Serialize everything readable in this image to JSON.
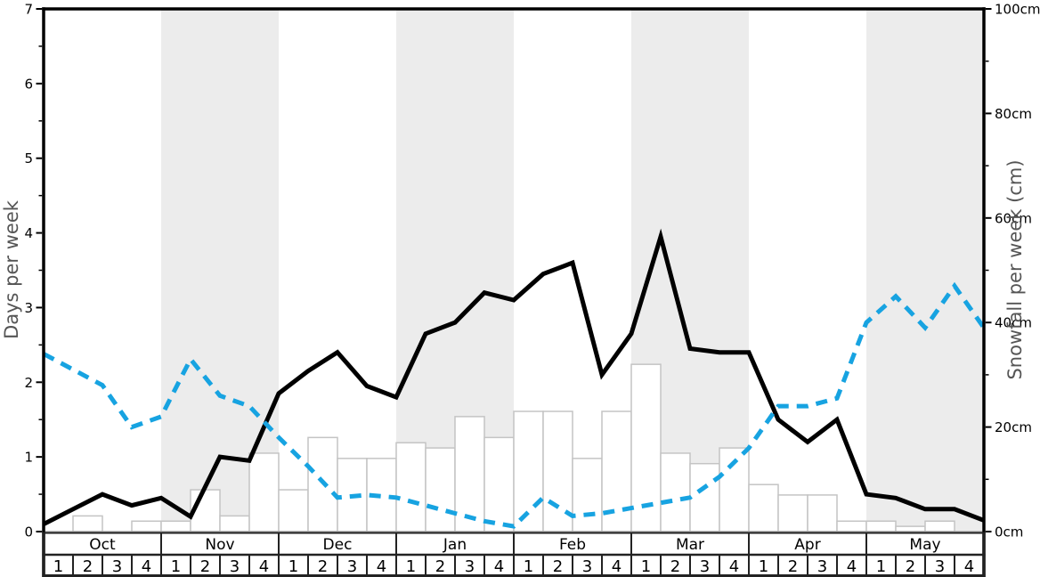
{
  "chart_data": {
    "type": "line+bar",
    "title": "",
    "months": [
      "Oct",
      "Nov",
      "Dec",
      "Jan",
      "Feb",
      "Mar",
      "Apr",
      "May"
    ],
    "weeks_per_month": 4,
    "week_labels": [
      "1",
      "2",
      "3",
      "4"
    ],
    "shaded_months": [
      "Nov",
      "Jan",
      "Mar",
      "May"
    ],
    "band_color": "#ececec",
    "left_axis": {
      "label": "Days per week",
      "min": 0,
      "max": 7,
      "major_tick_step": 1,
      "minor_tick_step": 0.5,
      "tick_labels": [
        "0",
        "1",
        "2",
        "3",
        "4",
        "5",
        "6",
        "7"
      ]
    },
    "right_axis": {
      "label": "Snowfall per week (cm)",
      "min": 0,
      "max": 100,
      "major_tick_step": 20,
      "minor_tick_step": 10,
      "tick_labels": [
        "0cm",
        "20cm",
        "40cm",
        "60cm",
        "80cm",
        "100cm"
      ]
    },
    "series": [
      {
        "name": "weekly-snowfall-bars",
        "type": "bar",
        "axis": "right",
        "unit": "cm",
        "style": {
          "fill": "#ffffff",
          "stroke": "#c4c4c4",
          "stroke_width": 1.5
        },
        "values": [
          0,
          3,
          0,
          2,
          2,
          8,
          3,
          15,
          8,
          18,
          14,
          14,
          17,
          16,
          22,
          18,
          23,
          23,
          14,
          23,
          32,
          15,
          13,
          16,
          9,
          7,
          7,
          2,
          2,
          1,
          2,
          0
        ]
      },
      {
        "name": "days-per-week-line",
        "type": "line",
        "axis": "left",
        "unit": "days",
        "points_at": "week-boundaries",
        "style": {
          "color": "#000000",
          "width": 5,
          "dash": "none"
        },
        "values": [
          0.1,
          0.3,
          0.5,
          0.35,
          0.45,
          0.2,
          1.0,
          0.95,
          1.85,
          2.15,
          2.4,
          1.95,
          1.8,
          2.65,
          2.8,
          3.2,
          3.1,
          3.45,
          3.6,
          2.1,
          2.65,
          3.95,
          2.45,
          2.4,
          2.4,
          1.5,
          1.2,
          1.5,
          0.5,
          0.45,
          0.3,
          0.3,
          0.15
        ]
      },
      {
        "name": "snowfall-dashed-line",
        "type": "line",
        "axis": "right",
        "unit": "cm",
        "points_at": "week-boundaries",
        "style": {
          "color": "#17a3e1",
          "width": 5,
          "dash": "13 9"
        },
        "values": [
          34,
          31,
          28,
          20,
          22,
          33,
          26,
          24,
          18,
          12.5,
          6.5,
          7,
          6.5,
          5,
          3.5,
          2,
          1,
          6.5,
          3,
          3.5,
          4.5,
          5.5,
          6.5,
          10.5,
          16,
          24,
          24,
          25.5,
          40,
          45,
          39,
          47,
          39
        ]
      }
    ],
    "grid": "off",
    "legend": "none"
  },
  "colors": {
    "axis_title": "#555555",
    "tick_label": "#000000",
    "spine": "#000000",
    "baseline": "#aaaaaa",
    "band": "#ececec",
    "bar_fill": "#ffffff",
    "bar_stroke": "#c4c4c4",
    "solid_line": "#000000",
    "dashed_line": "#17a3e1",
    "table_border": "#222222"
  }
}
